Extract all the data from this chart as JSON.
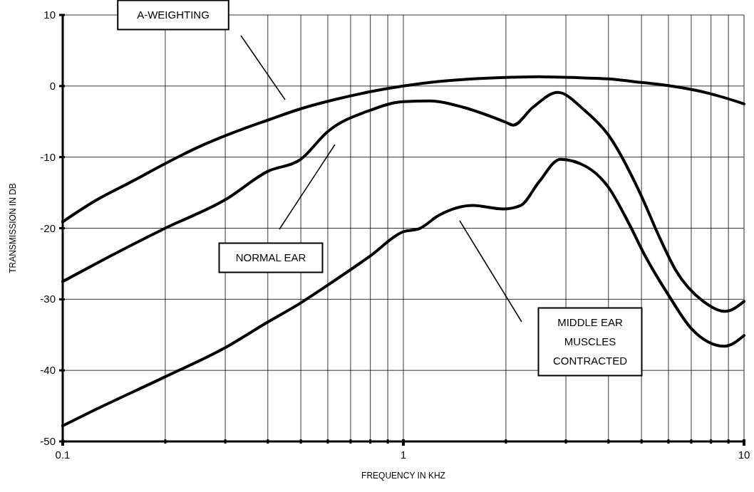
{
  "chart_data": {
    "type": "line",
    "xlabel": "FREQUENCY IN KHZ",
    "ylabel": "TRANSMISSION IN DB",
    "log": "x",
    "xlim": [
      0.1,
      10
    ],
    "xticks": [
      0.1,
      {
        "value": 0.2,
        "label": null
      },
      {
        "value": 0.3,
        "label": null
      },
      {
        "value": 0.4,
        "label": null
      },
      {
        "value": 0.5,
        "label": null
      },
      {
        "value": 0.6,
        "label": null
      },
      {
        "value": 0.7,
        "label": null
      },
      {
        "value": 0.8,
        "label": null
      },
      {
        "value": 0.9,
        "label": null
      },
      1,
      {
        "value": 2,
        "label": null
      },
      {
        "value": 3,
        "label": null
      },
      {
        "value": 4,
        "label": null
      },
      {
        "value": 5,
        "label": null
      },
      {
        "value": 6,
        "label": null
      },
      {
        "value": 7,
        "label": null
      },
      {
        "value": 8,
        "label": null
      },
      {
        "value": 9,
        "label": null
      },
      10
    ],
    "ylim": [
      -50,
      10
    ],
    "yticks": [
      -50,
      -40,
      -30,
      -20,
      -10,
      0,
      10
    ],
    "grid": true,
    "marker": "none",
    "line_style": "solid",
    "series": [
      {
        "color": "#000000",
        "x": [
          0.1,
          0.125,
          0.16,
          0.2,
          0.25,
          0.315,
          0.4,
          0.5,
          0.63,
          0.8,
          1,
          1.25,
          1.6,
          2,
          2.5,
          3.15,
          4,
          5,
          6.3,
          8,
          10
        ],
        "values": [
          -19.1,
          -16.1,
          -13.4,
          -10.9,
          -8.6,
          -6.6,
          -4.8,
          -3.2,
          -1.9,
          -0.8,
          0,
          0.6,
          1.0,
          1.2,
          1.3,
          1.2,
          1.0,
          0.5,
          -0.1,
          -1.1,
          -2.5
        ]
      },
      {
        "color": "#000000",
        "x": [
          0.1,
          0.125,
          0.2,
          0.3,
          0.4,
          0.5,
          0.6,
          0.8,
          1,
          1.2,
          1.5,
          2,
          2.1,
          2.4,
          2.84,
          3.4,
          4,
          5,
          5.6,
          6.3,
          7.6,
          8.8,
          10
        ],
        "values": [
          -27.5,
          -25,
          -20,
          -16,
          -12,
          -10.3,
          -6.4,
          -3.4,
          -2.2,
          -2.1,
          -3,
          -5.1,
          -5.5,
          -3,
          -0.9,
          -3.4,
          -6.9,
          -15.5,
          -20.9,
          -25.9,
          -30.3,
          -31.7,
          -30.3
        ]
      },
      {
        "color": "#000000",
        "x": [
          0.1,
          0.125,
          0.2,
          0.3,
          0.4,
          0.5,
          0.6,
          0.8,
          1,
          1.11,
          1.27,
          1.6,
          1.96,
          2.21,
          2.5,
          2.89,
          3.46,
          3.98,
          4.6,
          5.1,
          6.0,
          7.0,
          8.77,
          10
        ],
        "values": [
          -47.8,
          -45.5,
          -40.9,
          -36.8,
          -33.2,
          -30.5,
          -28,
          -23.9,
          -20.5,
          -20.1,
          -18.2,
          -16.8,
          -17.3,
          -16.8,
          -13.5,
          -10.3,
          -11.4,
          -14.1,
          -19.4,
          -23.7,
          -29.4,
          -34.1,
          -36.6,
          -35.1
        ]
      }
    ],
    "annotations": [
      "A-WEIGHTING",
      "NORMAL EAR",
      "MIDDLE EAR\nMUSCLES\nCONTRACTED"
    ]
  }
}
